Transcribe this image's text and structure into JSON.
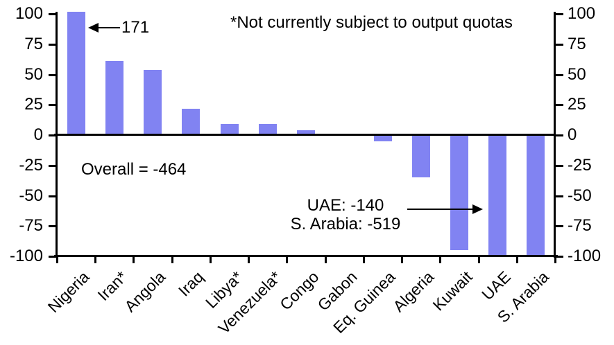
{
  "chart_data": {
    "type": "bar",
    "title": "",
    "xlabel": "",
    "ylabel": "",
    "categories": [
      "Nigeria",
      "Iran*",
      "Angola",
      "Iraq",
      "Libya*",
      "Venezuela*",
      "Congo",
      "Gabon",
      "Eq. Guinea",
      "Algeria",
      "Kuwait",
      "UAE",
      "S. Arabia"
    ],
    "values": [
      171,
      61,
      54,
      22,
      9,
      9,
      4,
      0,
      -5,
      -35,
      -95,
      -140,
      -519
    ],
    "ylim": [
      -100,
      100
    ],
    "yticks": [
      100,
      75,
      50,
      25,
      0,
      -25,
      -50,
      -75,
      -100
    ],
    "bar_color": "#8183F2",
    "axis_color": "#000000",
    "grid": "off",
    "legend": "none",
    "clipped_bars": [
      "Nigeria",
      "UAE",
      "S. Arabia"
    ],
    "annotations": {
      "nigeria_callout": "171",
      "footnote": "*Not currently subject to output quotas",
      "overall": "Overall = -464",
      "uae_note": "UAE: -140",
      "saudi_note": "S. Arabia: -519"
    }
  }
}
